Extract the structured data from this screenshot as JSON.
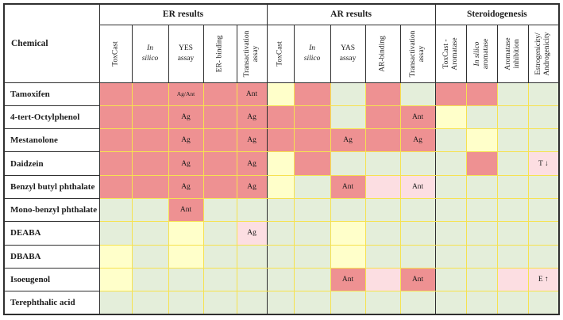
{
  "colors": {
    "positive": "#ee9192",
    "ambiguous": "#ffffca",
    "negative": "#e4eeda",
    "weak_equivocal": "#fcdee2",
    "gridline": "#f6e24f",
    "section_border": "#2f2f2f",
    "header_bg": "#ffffff"
  },
  "cell_color_key": {
    "R": "positive",
    "Y": "ambiguous",
    "G": "negative",
    "P": "weak_equivocal"
  },
  "header": {
    "chemical_label": "Chemical",
    "groups": [
      {
        "label": "ER results",
        "span": 5
      },
      {
        "label": "AR results",
        "span": 5
      },
      {
        "label": "Steroidogenesis",
        "span": 4
      }
    ],
    "columns": [
      {
        "label": "ToxCast",
        "rotated": true
      },
      {
        "label": "In\nsilico",
        "rotated": false,
        "italic": true
      },
      {
        "label": "YES\nassay",
        "rotated": false
      },
      {
        "label": "ER- binding",
        "rotated": true
      },
      {
        "label": "Transactivation\nassay",
        "rotated": true
      },
      {
        "label": "ToxCast",
        "rotated": true
      },
      {
        "label": "In\nsilico",
        "rotated": false,
        "italic": true
      },
      {
        "label": "YAS\nassay",
        "rotated": false
      },
      {
        "label": "AR-binding",
        "rotated": true
      },
      {
        "label": "Transactivation\nassay",
        "rotated": true
      },
      {
        "label": "ToxCast -\nAromatase",
        "rotated": true
      },
      {
        "label": "In silico\naromatase",
        "rotated": true,
        "italic_first_line": true
      },
      {
        "label": "Aromatase\ninhibition",
        "rotated": true
      },
      {
        "label": "Estrogenicity/\nAndrogenicity",
        "rotated": true
      }
    ]
  },
  "rows": [
    {
      "chemical": "Tamoxifen",
      "cells": [
        "R",
        "R",
        "R:Ag/Ant",
        "R",
        "R:Ant",
        "Y",
        "R",
        "G",
        "R",
        "G",
        "R",
        "R",
        "G",
        "G"
      ]
    },
    {
      "chemical": "4-tert-Octylphenol",
      "cells": [
        "R",
        "R",
        "R:Ag",
        "R",
        "R:Ag",
        "R",
        "R",
        "G",
        "R",
        "R:Ant",
        "Y",
        "G",
        "G",
        "G"
      ]
    },
    {
      "chemical": "Mestanolone",
      "cells": [
        "R",
        "R",
        "R:Ag",
        "R",
        "R:Ag",
        "R",
        "R",
        "R:Ag",
        "R",
        "R:Ag",
        "G",
        "Y",
        "G",
        "G"
      ]
    },
    {
      "chemical": "Daidzein",
      "cells": [
        "R",
        "R",
        "R:Ag",
        "R",
        "R:Ag",
        "Y",
        "R",
        "G",
        "G",
        "G",
        "G",
        "R",
        "G",
        "P:T ↓"
      ]
    },
    {
      "chemical": "Benzyl butyl phthalate",
      "cells": [
        "R",
        "R",
        "R:Ag",
        "R",
        "R:Ag",
        "Y",
        "G",
        "R:Ant",
        "P",
        "P:Ant",
        "G",
        "G",
        "G",
        "G"
      ]
    },
    {
      "chemical": "Mono-benzyl phthalate",
      "cells": [
        "G",
        "G",
        "R:Ant",
        "G",
        "G",
        "G",
        "G",
        "G",
        "G",
        "G",
        "G",
        "G",
        "G",
        "G"
      ]
    },
    {
      "chemical": "DEABA",
      "cells": [
        "G",
        "G",
        "Y",
        "G",
        "P:Ag",
        "G",
        "G",
        "Y",
        "G",
        "G",
        "G",
        "G",
        "G",
        "G"
      ]
    },
    {
      "chemical": "DBABA",
      "cells": [
        "Y",
        "G",
        "Y",
        "G",
        "G",
        "G",
        "G",
        "Y",
        "G",
        "G",
        "G",
        "G",
        "G",
        "G"
      ]
    },
    {
      "chemical": "Isoeugenol",
      "cells": [
        "Y",
        "G",
        "G",
        "G",
        "G",
        "G",
        "G",
        "R:Ant",
        "P",
        "R:Ant",
        "G",
        "G",
        "P",
        "P:E ↑"
      ]
    },
    {
      "chemical": "Terephthalic acid",
      "cells": [
        "G",
        "G",
        "G",
        "G",
        "G",
        "G",
        "G",
        "G",
        "G",
        "G",
        "G",
        "G",
        "G",
        "G"
      ]
    }
  ]
}
